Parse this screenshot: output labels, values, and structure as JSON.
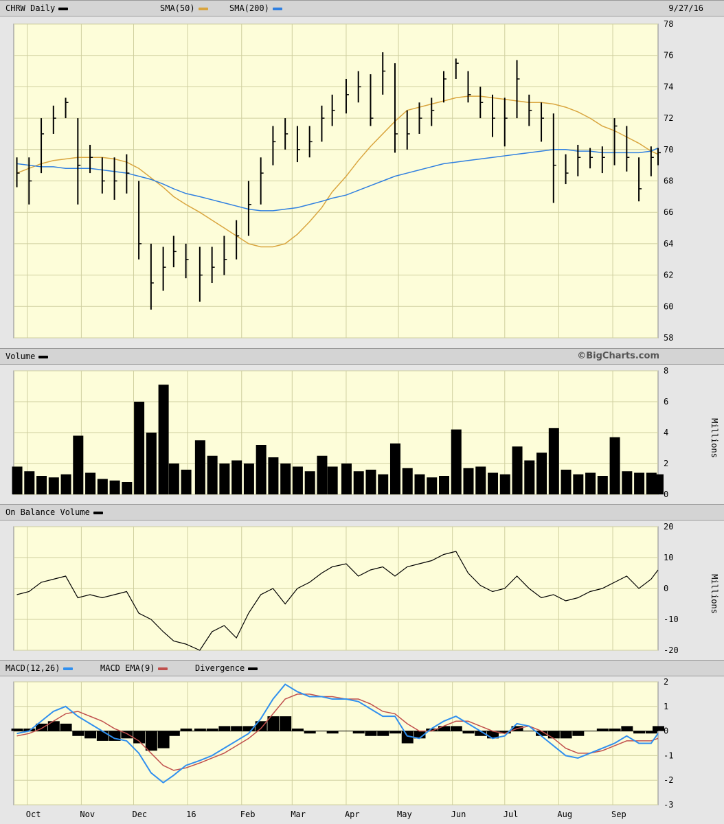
{
  "header": {
    "symbol_label": "CHRW Daily",
    "sma50_label": "SMA(50)",
    "sma200_label": "SMA(200)",
    "date": "9/27/16",
    "volume_label": "Volume",
    "copyright": "©BigCharts.com",
    "obv_label": "On Balance Volume",
    "macd_label": "MACD(12,26)",
    "macd_ema_label": "MACD EMA(9)",
    "divergence_label": "Divergence"
  },
  "colors": {
    "price": "#000000",
    "sma50": "#d9a53f",
    "sma200": "#2f7fe0",
    "macd": "#2f8fef",
    "macd_ema": "#c0504d",
    "divergence": "#000000",
    "plot_bg": "#fdfdd9",
    "grid": "#cfcf9f"
  },
  "chart_data": [
    {
      "type": "ohlc",
      "title": "CHRW Daily",
      "x": [
        "2015-09-25",
        "2015-10-02",
        "2015-10-09",
        "2015-10-16",
        "2015-10-23",
        "2015-10-30",
        "2015-11-06",
        "2015-11-13",
        "2015-11-20",
        "2015-11-27",
        "2015-12-04",
        "2015-12-11",
        "2015-12-18",
        "2015-12-24",
        "2015-12-31",
        "2016-01-08",
        "2016-01-15",
        "2016-01-22",
        "2016-01-29",
        "2016-02-05",
        "2016-02-12",
        "2016-02-19",
        "2016-02-26",
        "2016-03-04",
        "2016-03-11",
        "2016-03-18",
        "2016-03-24",
        "2016-04-01",
        "2016-04-08",
        "2016-04-15",
        "2016-04-22",
        "2016-04-29",
        "2016-05-06",
        "2016-05-13",
        "2016-05-20",
        "2016-05-27",
        "2016-06-03",
        "2016-06-10",
        "2016-06-17",
        "2016-06-24",
        "2016-07-01",
        "2016-07-08",
        "2016-07-15",
        "2016-07-22",
        "2016-07-29",
        "2016-08-05",
        "2016-08-12",
        "2016-08-19",
        "2016-08-26",
        "2016-09-02",
        "2016-09-09",
        "2016-09-16",
        "2016-09-23",
        "2016-09-27"
      ],
      "x_tick_labels": [
        "Oct",
        "Nov",
        "Dec",
        "16",
        "Feb",
        "Mar",
        "Apr",
        "May",
        "Jun",
        "Jul",
        "Aug",
        "Sep"
      ],
      "x_tick_dates": [
        "2015-10-01",
        "2015-11-01",
        "2015-12-01",
        "2016-01-01",
        "2016-02-01",
        "2016-03-01",
        "2016-04-01",
        "2016-05-01",
        "2016-06-01",
        "2016-07-01",
        "2016-08-01",
        "2016-09-01"
      ],
      "y_ticks": [
        58,
        60,
        62,
        64,
        66,
        68,
        70,
        72,
        74,
        76,
        78
      ],
      "ylim": [
        58,
        78
      ],
      "grid": true,
      "series": [
        {
          "name": "CHRW Daily",
          "close": [
            68.5,
            68,
            71,
            72,
            73,
            69,
            69.5,
            68,
            68,
            68.5,
            64,
            61.5,
            62.5,
            63.5,
            63,
            62,
            62.5,
            63,
            64.5,
            66.5,
            68.5,
            70.5,
            71,
            70,
            70.5,
            72,
            72.5,
            73.5,
            74,
            72,
            75,
            71,
            71,
            72,
            72.5,
            74.5,
            75.5,
            73.5,
            73,
            72,
            72,
            74.5,
            72.5,
            72,
            69,
            68.5,
            69.5,
            69.5,
            69.5,
            71.5,
            69.5,
            67.5,
            69.5,
            69.8
          ],
          "high": [
            69.5,
            69.5,
            72,
            72.8,
            73.3,
            72,
            70.3,
            69.5,
            69.5,
            69.7,
            68,
            64,
            63.8,
            64.5,
            64,
            63.8,
            63.8,
            64.5,
            65.5,
            68,
            69.5,
            71.5,
            72,
            71.5,
            71.5,
            72.8,
            73.5,
            74.5,
            75,
            74.8,
            76.2,
            75.5,
            72.5,
            73,
            73.3,
            75,
            75.8,
            75,
            74,
            73.5,
            73.3,
            75.7,
            73.5,
            73,
            72.3,
            69.7,
            70.3,
            70.1,
            70.2,
            72,
            71.5,
            69.5,
            70.2,
            70.1
          ],
          "low": [
            67.6,
            66.5,
            68.5,
            71,
            72,
            66.5,
            68.5,
            67.2,
            66.8,
            67.2,
            63,
            59.8,
            61,
            62.5,
            61.8,
            60.3,
            61.5,
            62,
            63,
            64.5,
            66.5,
            69,
            70,
            69.2,
            69.5,
            70.5,
            71.5,
            72.3,
            73,
            71.5,
            73.5,
            69.8,
            70,
            71,
            71.5,
            73,
            74.5,
            73,
            72,
            70.8,
            70.2,
            72,
            71.5,
            70.5,
            66.6,
            67.8,
            68.3,
            68.8,
            68.5,
            69,
            68.6,
            66.7,
            68.3,
            69
          ]
        },
        {
          "name": "SMA(50)",
          "values": [
            68.5,
            68.8,
            69.1,
            69.3,
            69.4,
            69.5,
            69.5,
            69.5,
            69.4,
            69.2,
            68.8,
            68.2,
            67.6,
            67,
            66.5,
            66,
            65.5,
            65,
            64.5,
            64,
            63.8,
            63.8,
            64,
            64.6,
            65.4,
            66.3,
            67.3,
            68.3,
            69.3,
            70.2,
            71,
            71.8,
            72.5,
            72.7,
            72.9,
            73.1,
            73.3,
            73.4,
            73.4,
            73.3,
            73.2,
            73.1,
            73,
            73,
            72.9,
            72.7,
            72.4,
            72,
            71.5,
            71.2,
            70.8,
            70.4,
            69.9,
            69.7
          ]
        },
        {
          "name": "SMA(200)",
          "values": [
            69.1,
            69,
            68.9,
            68.9,
            68.8,
            68.8,
            68.8,
            68.7,
            68.6,
            68.5,
            68.3,
            68.1,
            67.8,
            67.5,
            67.2,
            67,
            66.8,
            66.6,
            66.4,
            66.2,
            66.1,
            66.1,
            66.2,
            66.3,
            66.5,
            66.7,
            66.9,
            67.1,
            67.4,
            67.7,
            68,
            68.3,
            68.5,
            68.7,
            68.9,
            69.1,
            69.2,
            69.3,
            69.4,
            69.5,
            69.6,
            69.7,
            69.8,
            69.9,
            70,
            70,
            69.9,
            69.9,
            69.8,
            69.8,
            69.8,
            69.8,
            69.9,
            70.1
          ]
        }
      ]
    },
    {
      "type": "area",
      "title": "Volume",
      "ylabel": "Millions",
      "y_ticks": [
        0,
        2,
        4,
        6,
        8
      ],
      "ylim": [
        0,
        8
      ],
      "series": [
        {
          "name": "Volume",
          "values": [
            1.8,
            1.5,
            1.2,
            1.1,
            1.3,
            3.8,
            1.4,
            1,
            0.9,
            0.8,
            6,
            4,
            7.1,
            2,
            1.6,
            3.5,
            2.5,
            2,
            2.2,
            2,
            3.2,
            2.4,
            2,
            1.8,
            1.5,
            2.5,
            1.8,
            2,
            1.5,
            1.6,
            1.3,
            3.3,
            1.7,
            1.3,
            1.1,
            1.2,
            4.2,
            1.7,
            1.8,
            1.4,
            1.3,
            3.1,
            2.2,
            2.7,
            4.3,
            1.6,
            1.3,
            1.4,
            1.2,
            3.7,
            1.5,
            1.4,
            1.4,
            1.3
          ]
        }
      ]
    },
    {
      "type": "line",
      "title": "On Balance Volume",
      "ylabel": "Millions",
      "y_ticks": [
        -20,
        -10,
        0,
        10,
        20
      ],
      "ylim": [
        -20,
        20
      ],
      "series": [
        {
          "name": "On Balance Volume",
          "values": [
            -2,
            -1,
            2,
            3,
            4,
            -3,
            -2,
            -3,
            -2,
            -1,
            -8,
            -10,
            -14,
            -17,
            -18,
            -20,
            -14,
            -12,
            -16,
            -8,
            -2,
            0,
            -5,
            0,
            2,
            5,
            7,
            8,
            4,
            6,
            7,
            4,
            7,
            8,
            9,
            11,
            12,
            5,
            1,
            -1,
            0,
            4,
            0,
            -3,
            -2,
            -4,
            -3,
            -1,
            0,
            2,
            4,
            0,
            3,
            6
          ]
        }
      ]
    },
    {
      "type": "line",
      "title": "MACD(12,26)",
      "y_ticks": [
        -3,
        -2,
        -1,
        0,
        1,
        2
      ],
      "ylim": [
        -3,
        2
      ],
      "series": [
        {
          "name": "MACD(12,26)",
          "values": [
            -0.1,
            0,
            0.4,
            0.8,
            1,
            0.6,
            0.3,
            0,
            -0.3,
            -0.4,
            -0.9,
            -1.7,
            -2.1,
            -1.8,
            -1.4,
            -1.2,
            -1,
            -0.7,
            -0.4,
            -0.1,
            0.5,
            1.3,
            1.9,
            1.6,
            1.4,
            1.4,
            1.3,
            1.3,
            1.2,
            0.9,
            0.6,
            0.6,
            -0.2,
            -0.3,
            0.1,
            0.4,
            0.6,
            0.3,
            0,
            -0.3,
            -0.2,
            0.3,
            0.2,
            -0.2,
            -0.6,
            -1,
            -1.1,
            -0.9,
            -0.7,
            -0.5,
            -0.2,
            -0.5,
            -0.5,
            -0.1
          ]
        },
        {
          "name": "MACD EMA(9)",
          "values": [
            -0.2,
            -0.1,
            0.1,
            0.4,
            0.7,
            0.8,
            0.6,
            0.4,
            0.1,
            -0.1,
            -0.4,
            -0.9,
            -1.4,
            -1.6,
            -1.5,
            -1.3,
            -1.1,
            -0.9,
            -0.6,
            -0.3,
            0.1,
            0.7,
            1.3,
            1.5,
            1.5,
            1.4,
            1.4,
            1.3,
            1.3,
            1.1,
            0.8,
            0.7,
            0.3,
            0,
            0,
            0.2,
            0.4,
            0.4,
            0.2,
            0,
            -0.1,
            0.1,
            0.2,
            0,
            -0.3,
            -0.7,
            -0.9,
            -0.9,
            -0.8,
            -0.6,
            -0.4,
            -0.4,
            -0.4,
            -0.3
          ]
        },
        {
          "name": "Divergence",
          "values": [
            0.1,
            0.1,
            0.3,
            0.4,
            0.3,
            -0.2,
            -0.3,
            -0.4,
            -0.4,
            -0.3,
            -0.5,
            -0.8,
            -0.7,
            -0.2,
            0.1,
            0.1,
            0.1,
            0.2,
            0.2,
            0.2,
            0.4,
            0.6,
            0.6,
            0.1,
            -0.1,
            0,
            -0.1,
            0,
            -0.1,
            -0.2,
            -0.2,
            -0.1,
            -0.5,
            -0.3,
            0.1,
            0.2,
            0.2,
            -0.1,
            -0.2,
            -0.3,
            -0.1,
            0.2,
            0,
            -0.2,
            -0.3,
            -0.3,
            -0.2,
            0,
            0.1,
            0.1,
            0.2,
            -0.1,
            -0.1,
            0.2
          ]
        }
      ]
    }
  ]
}
